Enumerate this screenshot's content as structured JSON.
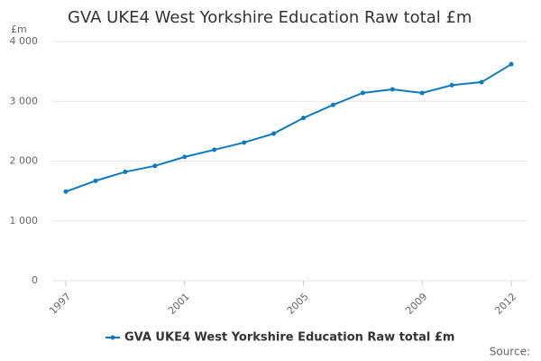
{
  "chart_data": {
    "type": "line",
    "title": "GVA UKE4 West Yorkshire Education Raw total £m",
    "y_unit_label": "£m",
    "source": "Source:",
    "x": [
      1997,
      1998,
      1999,
      2000,
      2001,
      2002,
      2003,
      2004,
      2005,
      2006,
      2007,
      2008,
      2009,
      2010,
      2011,
      2012
    ],
    "series": [
      {
        "name": "GVA UKE4 West Yorkshire Education Raw total £m",
        "color": "#0e7bbd",
        "values": [
          1490,
          1670,
          1820,
          1920,
          2070,
          2190,
          2310,
          2460,
          2720,
          2940,
          3140,
          3200,
          3140,
          3270,
          3320,
          3620
        ]
      }
    ],
    "xlim": [
      1997,
      2012
    ],
    "xticks": [
      1997,
      2001,
      2005,
      2009,
      2012
    ],
    "ylim": [
      0,
      4000
    ],
    "yticks": [
      0,
      {
        "value": 1000,
        "label": "1 000"
      },
      {
        "value": 2000,
        "label": "2 000"
      },
      {
        "value": 3000,
        "label": "3 000"
      },
      {
        "value": 4000,
        "label": "4 000"
      }
    ],
    "grid": true
  }
}
